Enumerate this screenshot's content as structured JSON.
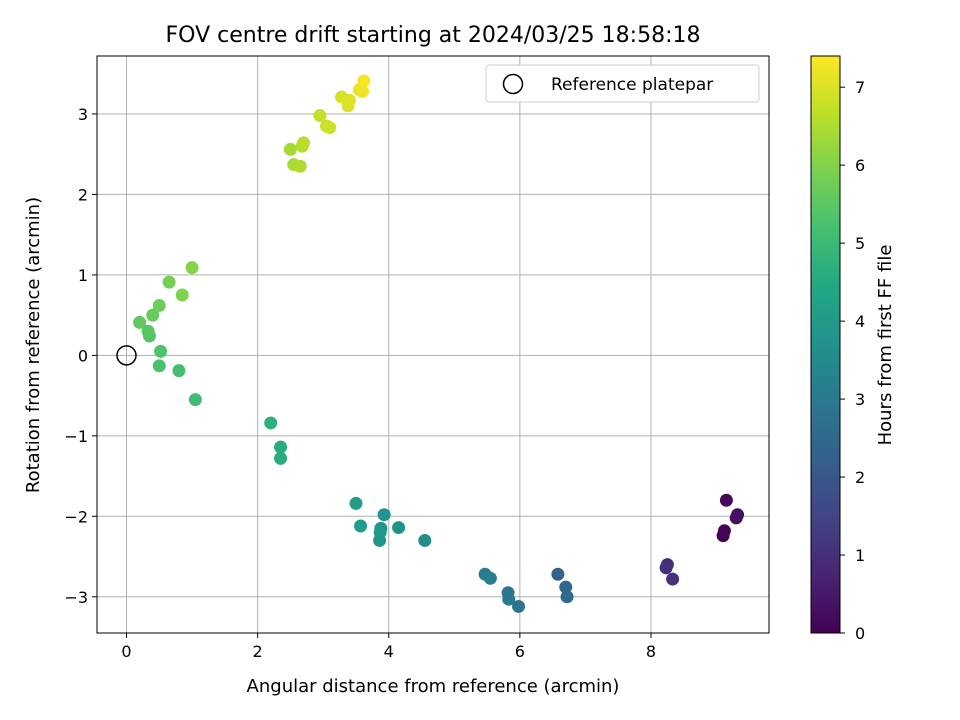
{
  "chart_data": {
    "type": "scatter",
    "title": "FOV centre drift starting at 2024/03/25 18:58:18",
    "xlabel": "Angular distance from reference (arcmin)",
    "ylabel": "Rotation from reference (arcmin)",
    "xlim": [
      -0.45,
      9.8
    ],
    "ylim": [
      -3.45,
      3.72
    ],
    "xticks": [
      0,
      2,
      4,
      6,
      8
    ],
    "yticks": [
      -3,
      -2,
      -1,
      0,
      1,
      2,
      3
    ],
    "xtick_labels": [
      "0",
      "2",
      "4",
      "6",
      "8"
    ],
    "ytick_labels": [
      "−3",
      "−2",
      "−1",
      "0",
      "1",
      "2",
      "3"
    ],
    "grid": true,
    "legend": {
      "position": "top-right",
      "entries": [
        "Reference platepar"
      ]
    },
    "reference_point": {
      "x": 0,
      "y": 0
    },
    "colorbar": {
      "label": "Hours from first FF file",
      "range": [
        0,
        7.4
      ],
      "ticks": [
        0,
        1,
        2,
        3,
        4,
        5,
        6,
        7
      ],
      "tick_labels": [
        "0",
        "1",
        "2",
        "3",
        "4",
        "5",
        "6",
        "7"
      ],
      "colormap": "viridis"
    },
    "points": [
      {
        "x": 9.1,
        "y": -2.24,
        "t": 0.02
      },
      {
        "x": 9.12,
        "y": -2.18,
        "t": 0.1
      },
      {
        "x": 9.15,
        "y": -1.8,
        "t": 0.15
      },
      {
        "x": 9.3,
        "y": -2.02,
        "t": 0.25
      },
      {
        "x": 9.32,
        "y": -1.98,
        "t": 0.3
      },
      {
        "x": 8.25,
        "y": -2.6,
        "t": 0.95
      },
      {
        "x": 8.23,
        "y": -2.64,
        "t": 1.0
      },
      {
        "x": 8.33,
        "y": -2.78,
        "t": 1.05
      },
      {
        "x": 6.58,
        "y": -2.72,
        "t": 2.35
      },
      {
        "x": 6.7,
        "y": -2.88,
        "t": 2.45
      },
      {
        "x": 6.72,
        "y": -3.0,
        "t": 2.55
      },
      {
        "x": 5.98,
        "y": -3.12,
        "t": 2.85
      },
      {
        "x": 5.82,
        "y": -2.95,
        "t": 2.95
      },
      {
        "x": 5.83,
        "y": -3.03,
        "t": 3.0
      },
      {
        "x": 5.47,
        "y": -2.72,
        "t": 3.1
      },
      {
        "x": 5.55,
        "y": -2.77,
        "t": 3.15
      },
      {
        "x": 4.55,
        "y": -2.3,
        "t": 3.6
      },
      {
        "x": 4.15,
        "y": -2.14,
        "t": 3.75
      },
      {
        "x": 3.93,
        "y": -1.98,
        "t": 3.8
      },
      {
        "x": 3.88,
        "y": -2.15,
        "t": 3.85
      },
      {
        "x": 3.86,
        "y": -2.3,
        "t": 3.9
      },
      {
        "x": 3.87,
        "y": -2.2,
        "t": 3.95
      },
      {
        "x": 3.57,
        "y": -2.12,
        "t": 4.05
      },
      {
        "x": 3.5,
        "y": -1.84,
        "t": 4.1
      },
      {
        "x": 2.35,
        "y": -1.14,
        "t": 4.55
      },
      {
        "x": 2.35,
        "y": -1.28,
        "t": 4.6
      },
      {
        "x": 2.2,
        "y": -0.84,
        "t": 4.7
      },
      {
        "x": 1.05,
        "y": -0.55,
        "t": 5.05
      },
      {
        "x": 0.8,
        "y": -0.19,
        "t": 5.2
      },
      {
        "x": 0.5,
        "y": -0.13,
        "t": 5.25
      },
      {
        "x": 0.52,
        "y": 0.05,
        "t": 5.3
      },
      {
        "x": 0.35,
        "y": 0.24,
        "t": 5.4
      },
      {
        "x": 0.33,
        "y": 0.3,
        "t": 5.45
      },
      {
        "x": 0.2,
        "y": 0.41,
        "t": 5.55
      },
      {
        "x": 0.4,
        "y": 0.5,
        "t": 5.65
      },
      {
        "x": 0.5,
        "y": 0.62,
        "t": 5.75
      },
      {
        "x": 0.65,
        "y": 0.91,
        "t": 5.85
      },
      {
        "x": 0.85,
        "y": 0.75,
        "t": 5.95
      },
      {
        "x": 1.0,
        "y": 1.09,
        "t": 6.05
      },
      {
        "x": 2.5,
        "y": 2.56,
        "t": 6.4
      },
      {
        "x": 2.55,
        "y": 2.37,
        "t": 6.45
      },
      {
        "x": 2.65,
        "y": 2.35,
        "t": 6.5
      },
      {
        "x": 2.68,
        "y": 2.6,
        "t": 6.55
      },
      {
        "x": 2.7,
        "y": 2.64,
        "t": 6.6
      },
      {
        "x": 2.95,
        "y": 2.98,
        "t": 6.75
      },
      {
        "x": 3.05,
        "y": 2.85,
        "t": 6.8
      },
      {
        "x": 3.1,
        "y": 2.83,
        "t": 6.85
      },
      {
        "x": 3.28,
        "y": 3.21,
        "t": 6.95
      },
      {
        "x": 3.38,
        "y": 3.1,
        "t": 7.0
      },
      {
        "x": 3.4,
        "y": 3.17,
        "t": 7.05
      },
      {
        "x": 3.55,
        "y": 3.3,
        "t": 7.15
      },
      {
        "x": 3.6,
        "y": 3.28,
        "t": 7.2
      },
      {
        "x": 3.62,
        "y": 3.41,
        "t": 7.3
      }
    ]
  }
}
